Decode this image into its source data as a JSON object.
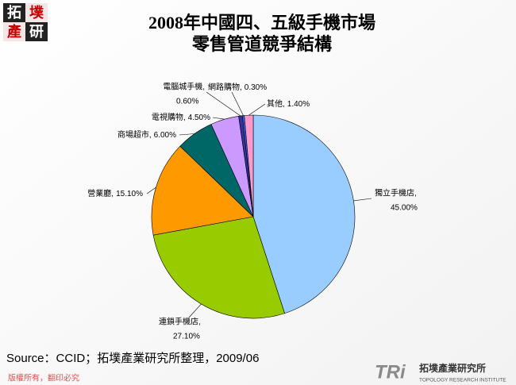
{
  "chart_data": {
    "type": "pie",
    "title": "2008年中國四、五級手機市場",
    "subtitle": "零售管道競爭結構",
    "categories": [
      "獨立手機店,",
      "連鎖手機店,",
      "營業廳,",
      "商場超市,",
      "電視購物,",
      "電腦城手機,",
      "網路購物,",
      "其他,"
    ],
    "values": [
      45,
      27.1,
      15.1,
      6,
      4.5,
      0.6,
      0.3,
      1.4
    ],
    "value_labels": [
      "45.00%",
      "27.10%",
      "15.10%",
      "6.00%",
      "4.50%",
      "0.60%",
      "0.30%",
      "1.40%"
    ],
    "colors": [
      "#99ccff",
      "#99cc00",
      "#ff9900",
      "#006666",
      "#cc99ff",
      "#333399",
      "#3366ff",
      "#ff99cc"
    ]
  },
  "slide": {
    "logo": [
      "拓",
      "墣",
      "產",
      "研"
    ],
    "source": "Source：CCID；拓墣產業研究所整理，2009/06",
    "footer": "版權所有，翻印必究",
    "brand_mark": "TRi",
    "brand": "拓墣產業研究所",
    "brand_en": "TOPOLOGY RESEARCH INSTITUTE"
  }
}
